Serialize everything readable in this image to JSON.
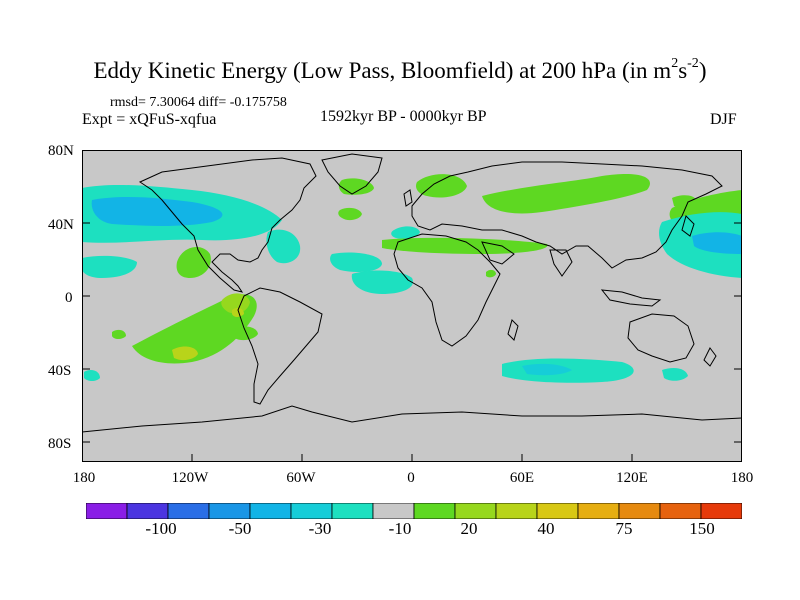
{
  "title_main": "Eddy Kinetic Energy (Low Pass, Bloomfield) at 200 hPa (in m",
  "title_sup1": "2",
  "title_mid": "s",
  "title_sup2": "-2",
  "title_end": ")",
  "stats_text": "rmsd= 7.30064 diff= -0.175758",
  "expt_text": "Expt = xQFuS-xqfua",
  "period_text": "1592kyr BP - 0000kyr BP",
  "season_text": "DJF",
  "lat_ticks": [
    "80N",
    "40N",
    "0",
    "40S",
    "80S"
  ],
  "lon_ticks": [
    "180",
    "120W",
    "60W",
    "0",
    "60E",
    "120E",
    "180"
  ],
  "colorbar": {
    "colors": [
      "#8a1ee6",
      "#4b35e0",
      "#2a6ee6",
      "#1a96e6",
      "#12b4e6",
      "#16cdd8",
      "#1de0c0",
      "#c8c8c8",
      "#5ed822",
      "#96d81e",
      "#b8d41a",
      "#d8c814",
      "#e6ae12",
      "#e68a10",
      "#e6620e",
      "#e63a0a"
    ],
    "labels": [
      "-100",
      "-50",
      "-30",
      "-10",
      "20",
      "40",
      "75",
      "150"
    ]
  },
  "map": {
    "background": "#c8c8c8",
    "contour_colors": {
      "cyan": "#1de0c0",
      "teal": "#16cdd8",
      "sky": "#12b4e6",
      "green": "#5ed822",
      "yellow_green": "#b8d41a"
    }
  }
}
